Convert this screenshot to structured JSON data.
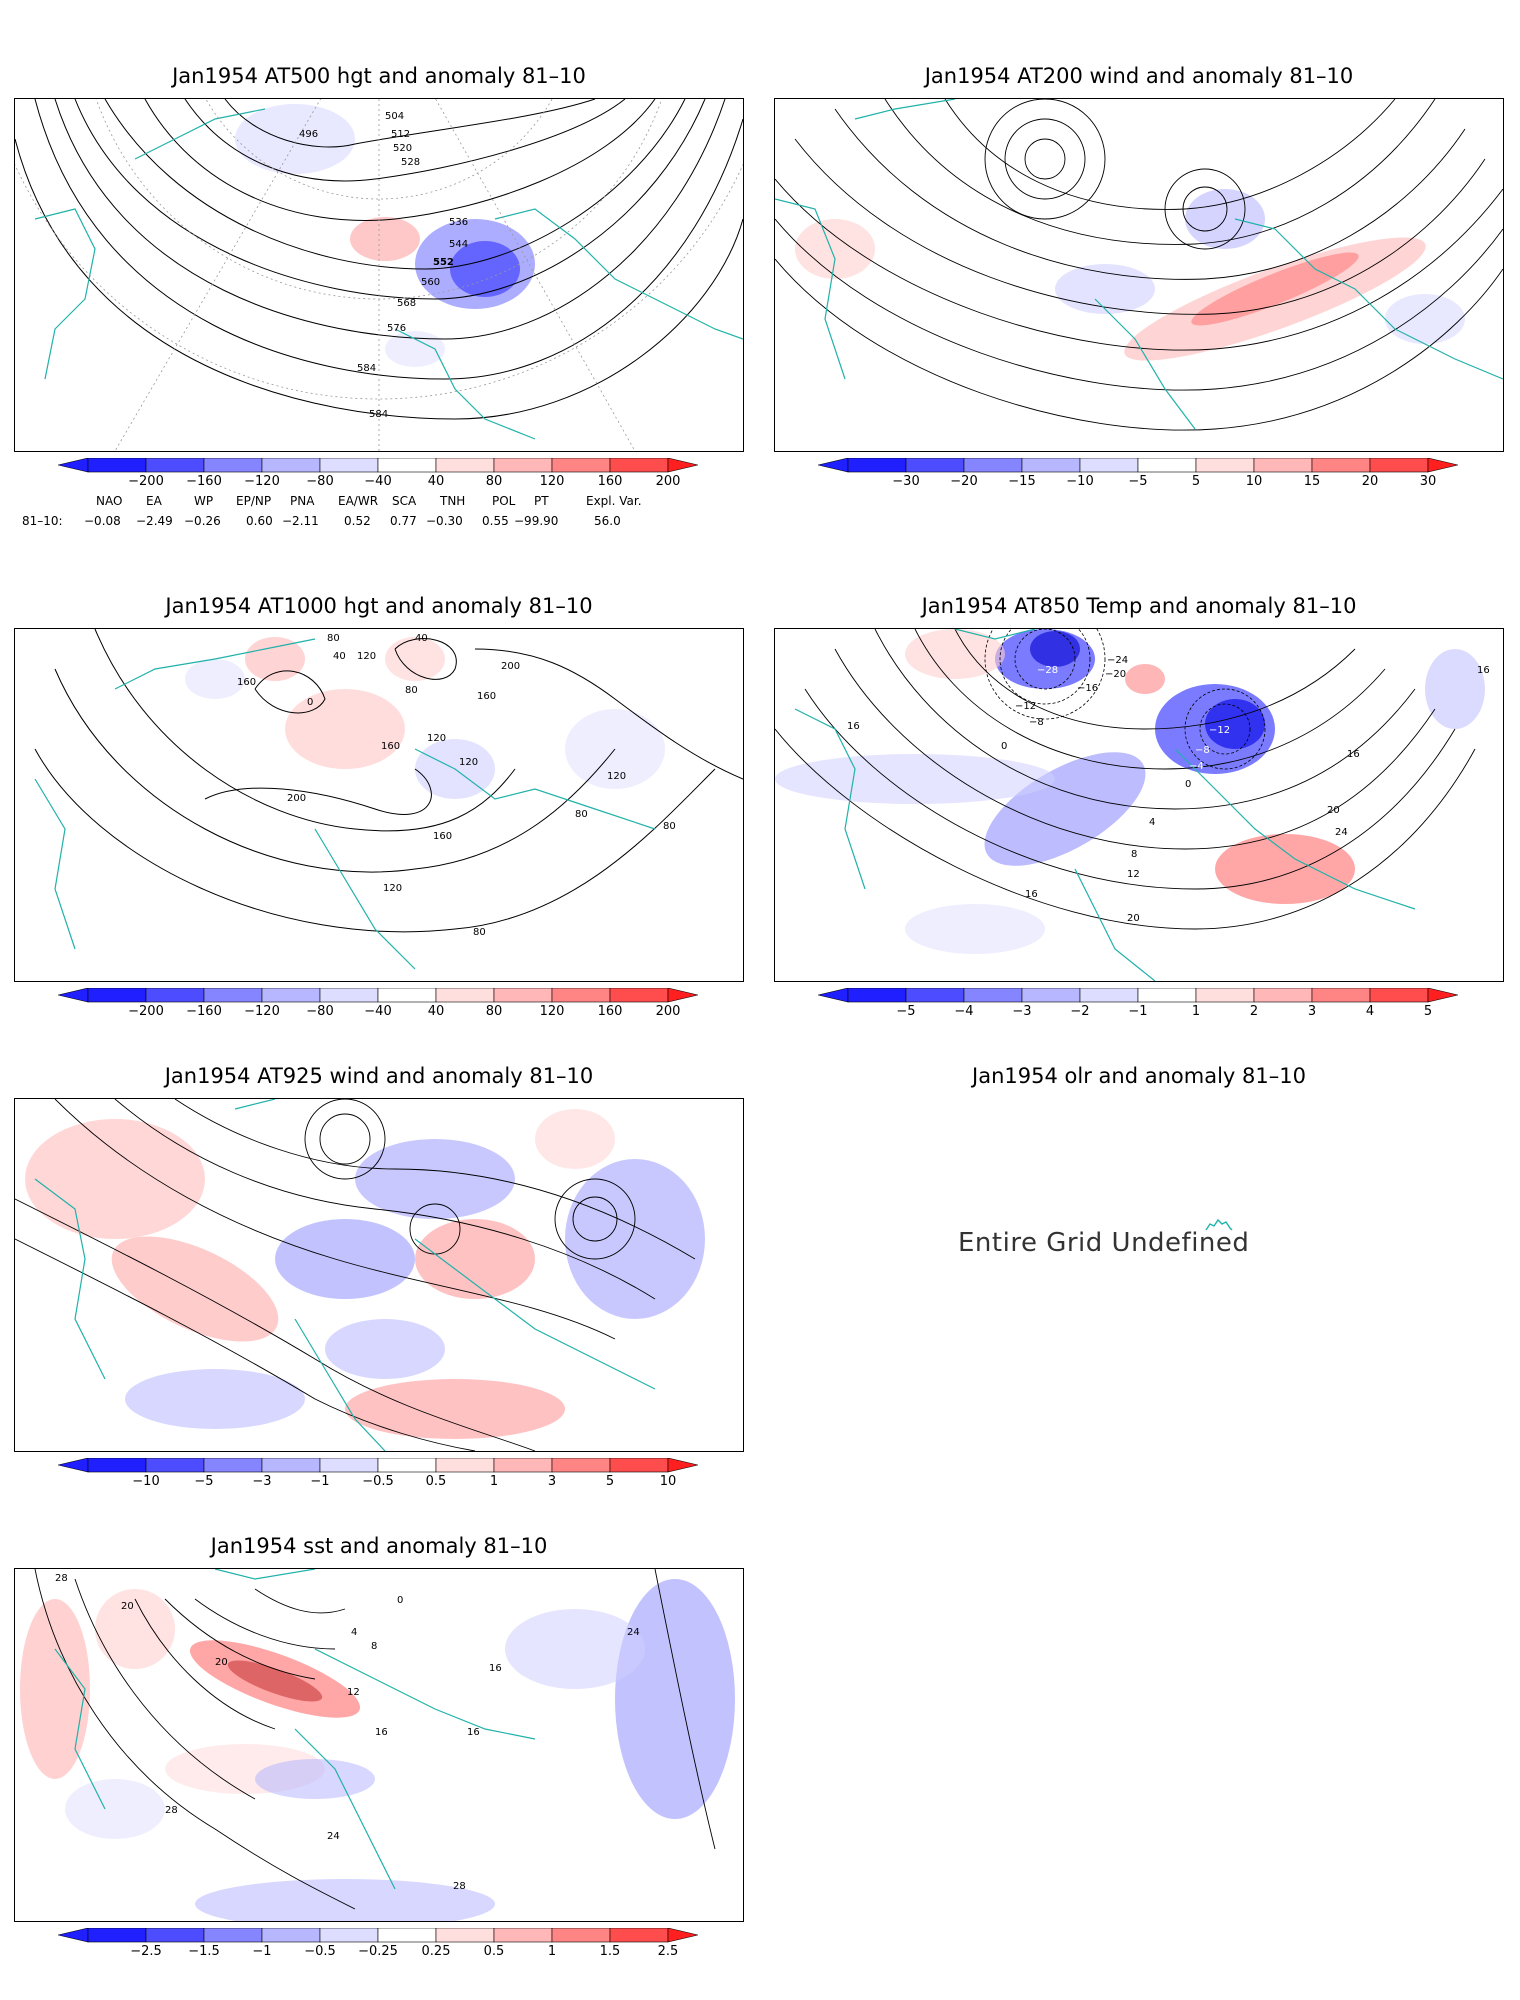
{
  "panels": [
    {
      "id": "at500",
      "title": "Jan1954 AT500 hgt and anomaly 81–10",
      "contour_labels": [
        "496",
        "504",
        "512",
        "520",
        "528",
        "536",
        "544",
        "552",
        "560",
        "568",
        "576",
        "584",
        "584"
      ],
      "colorbar": {
        "type": "hgt",
        "ticks": [
          "−200",
          "−160",
          "−120",
          "−80",
          "−40",
          "40",
          "80",
          "120",
          "160",
          "200"
        ]
      }
    },
    {
      "id": "at200",
      "title": "Jan1954 AT200 wind and anomaly 81–10",
      "colorbar": {
        "type": "wind",
        "ticks": [
          "−30",
          "−20",
          "−15",
          "−10",
          "−5",
          "5",
          "10",
          "15",
          "20",
          "30"
        ]
      }
    },
    {
      "id": "at1000",
      "title": "Jan1954 AT1000 hgt and anomaly 81–10",
      "contour_labels": [
        "80",
        "40",
        "120",
        "40",
        "160",
        "0",
        "80",
        "200",
        "160",
        "120",
        "160",
        "120",
        "200",
        "120",
        "80",
        "80",
        "160",
        "120",
        "80"
      ],
      "colorbar": {
        "type": "hgt",
        "ticks": [
          "−200",
          "−160",
          "−120",
          "−80",
          "−40",
          "40",
          "80",
          "120",
          "160",
          "200"
        ]
      }
    },
    {
      "id": "at850",
      "title": "Jan1954 AT850 Temp and anomaly 81–10",
      "contour_labels": [
        "−28",
        "−24",
        "−20",
        "−16",
        "−12",
        "−8",
        "0",
        "−12",
        "−8",
        "−4",
        "0",
        "4",
        "8",
        "12",
        "16",
        "16",
        "16",
        "20",
        "24",
        "20",
        "16"
      ],
      "colorbar": {
        "type": "temp",
        "ticks": [
          "−5",
          "−4",
          "−3",
          "−2",
          "−1",
          "1",
          "2",
          "3",
          "4",
          "5"
        ]
      }
    },
    {
      "id": "at925",
      "title": "Jan1954 AT925 wind and anomaly 81–10",
      "colorbar": {
        "type": "wind925",
        "ticks": [
          "−10",
          "−5",
          "−3",
          "−1",
          "−0.5",
          "0.5",
          "1",
          "3",
          "5",
          "10"
        ]
      }
    },
    {
      "id": "olr",
      "title": "Jan1954 olr and anomaly 81–10",
      "message": "Entire Grid Undefined"
    },
    {
      "id": "sst",
      "title": "Jan1954 sst and anomaly 81–10",
      "contour_labels": [
        "28",
        "20",
        "20",
        "12",
        "8",
        "4",
        "0",
        "16",
        "16",
        "16",
        "24",
        "24",
        "28",
        "28"
      ],
      "colorbar": {
        "type": "sst",
        "ticks": [
          "−2.5",
          "−1.5",
          "−1",
          "−0.5",
          "−0.25",
          "0.25",
          "0.5",
          "1",
          "1.5",
          "2.5"
        ]
      }
    }
  ],
  "indices": {
    "headers": [
      "NAO",
      "EA",
      "WP",
      "EP/NP",
      "PNA",
      "EA/WR",
      "SCA",
      "TNH",
      "POL",
      "PT",
      "Expl. Var."
    ],
    "row_label": "81–10:",
    "values": [
      "−0.08",
      "−2.49",
      "−0.26",
      "0.60",
      "−2.11",
      "0.52",
      "0.77",
      "−0.30",
      "0.55",
      "−99.90",
      "56.0"
    ]
  },
  "colors": {
    "coast": "#20b2aa",
    "neg_strong": "#1f1fff",
    "pos_strong": "#ff1f1f"
  }
}
